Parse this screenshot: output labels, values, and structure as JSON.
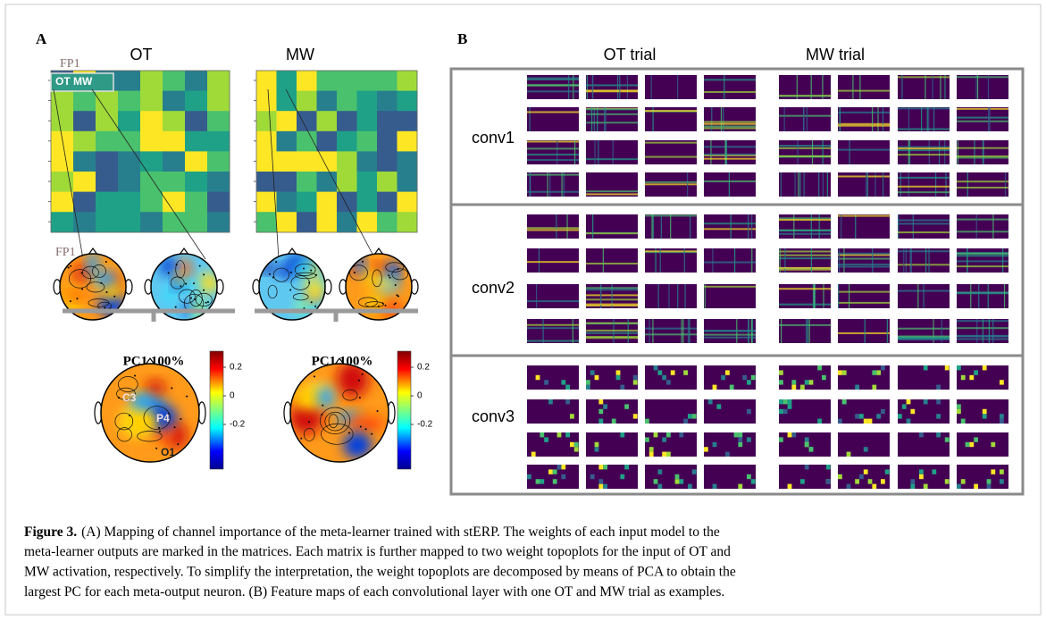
{
  "panel_a": {
    "label": "A",
    "matrix_titles": [
      "OT",
      "MW"
    ],
    "channel_labels": [
      "FP1",
      "FP1"
    ],
    "cell_tags": [
      "OT",
      "MW"
    ],
    "pc_titles": [
      "PC1 100%",
      "PC1 100%"
    ],
    "colorbar_ticks": [
      "0.2",
      "0",
      "-0.2"
    ],
    "electrodes": [
      "C3",
      "P4",
      "O1"
    ]
  },
  "panel_b": {
    "label": "B",
    "column_titles": [
      "OT trial",
      "MW trial"
    ],
    "row_labels": [
      "conv1",
      "conv2",
      "conv3"
    ]
  },
  "caption": {
    "label": "Figure 3.",
    "lines": [
      "(A) Mapping of channel importance of the meta-learner trained with stERP. The weights of each input model to the",
      "meta-learner outputs are marked in the matrices. Each matrix is further mapped to two weight topoplots for the input of OT and",
      "MW activation, respectively. To simplify the interpretation, the weight topoplots are decomposed by means of PCA to obtain the",
      "largest PC for each meta-output neuron. (B) Feature maps of each convolutional layer with one OT and MW trial as examples."
    ]
  }
}
